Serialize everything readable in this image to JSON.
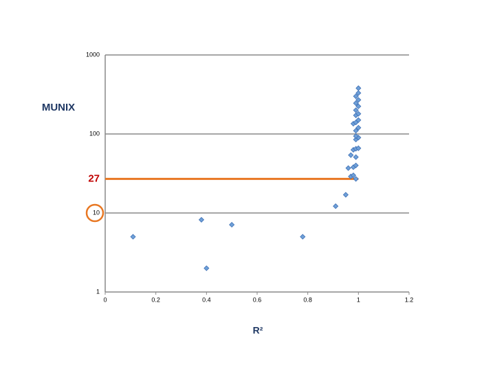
{
  "chart_data": {
    "type": "scatter",
    "y_label": "MUNIX",
    "x_label": "R²",
    "log_y": true,
    "grid": true,
    "xlim": [
      0,
      1.2
    ],
    "xticks": [
      0,
      0.2,
      0.4,
      0.6,
      0.8,
      1,
      1.2
    ],
    "ylim": [
      1,
      1000
    ],
    "yticks": [
      1,
      10,
      100,
      1000
    ],
    "color": "#6fa0d8",
    "reference_line": {
      "value": 27,
      "color": "#e87722",
      "x_range": [
        0,
        1
      ]
    },
    "highlight_tick": {
      "value": 10,
      "color": "#e87722"
    },
    "x": [
      0.11,
      0.38,
      0.4,
      0.5,
      0.78,
      0.91,
      0.95,
      0.97,
      0.98,
      0.99,
      0.98,
      0.99,
      0.96,
      0.97,
      0.98,
      0.99,
      1.0,
      0.99,
      0.99,
      1.0,
      0.99,
      0.99,
      1.0,
      0.98,
      0.99,
      1.0,
      0.99,
      1.0,
      0.99,
      1.0,
      0.99,
      1.0,
      0.99,
      1.0,
      1.0
    ],
    "values": [
      5,
      8.2,
      2,
      7.1,
      5,
      12.2,
      17,
      29,
      30,
      27,
      38,
      40,
      37,
      54,
      63,
      65,
      66,
      51,
      85,
      90,
      94,
      110,
      120,
      135,
      140,
      150,
      172,
      180,
      200,
      224,
      245,
      270,
      300,
      330,
      380
    ]
  }
}
